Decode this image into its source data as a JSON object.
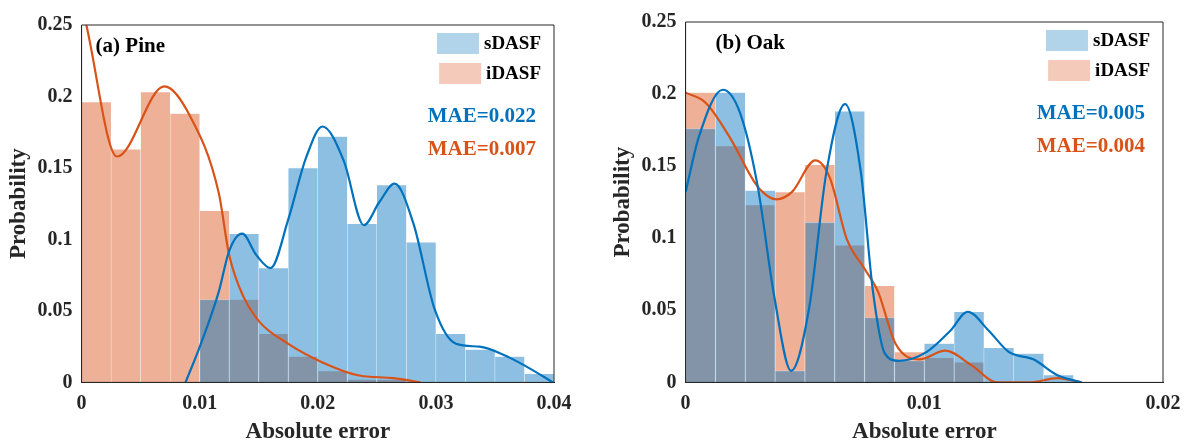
{
  "chart_data": [
    {
      "type": "histogram",
      "title": "(a) Pine",
      "xlabel": "Absolute error",
      "ylabel": "Probability",
      "bins": [
        0,
        0.0025,
        0.005,
        0.0075,
        0.01,
        0.0125,
        0.015,
        0.0175,
        0.02,
        0.0225,
        0.025,
        0.0275,
        0.03,
        0.0325,
        0.035,
        0.0375,
        0.04
      ],
      "series": [
        {
          "name": "sDASF",
          "color": "#0072bd",
          "values": [
            0,
            0,
            0,
            0,
            0.058,
            0.104,
            0.08,
            0.15,
            0.172,
            0.111,
            0.138,
            0.098,
            0.034,
            0.023,
            0.018,
            0.006
          ]
        },
        {
          "name": "iDASF",
          "color": "#d95319",
          "values": [
            0.196,
            0.163,
            0.203,
            0.188,
            0.12,
            0.058,
            0.034,
            0.018,
            0.008,
            0.002,
            0.002,
            0,
            0,
            0,
            0,
            0
          ]
        },
        {
          "type": "line",
          "color": "#0072bd",
          "x": [
            0.0088,
            0.0101,
            0.0116,
            0.0125,
            0.0136,
            0.0148,
            0.016,
            0.0175,
            0.019,
            0.0204,
            0.0222,
            0.0239,
            0.0252,
            0.0265,
            0.0281,
            0.0299,
            0.0317,
            0.0337,
            0.0358,
            0.0379,
            0.0399
          ],
          "values": [
            0,
            0.027,
            0.063,
            0.092,
            0.104,
            0.089,
            0.08,
            0.114,
            0.157,
            0.179,
            0.155,
            0.11,
            0.126,
            0.139,
            0.111,
            0.051,
            0.027,
            0.025,
            0.019,
            0.01,
            0
          ]
        },
        {
          "type": "line",
          "color": "#d95319",
          "x": [
            0.0004,
            0.003,
            0.007,
            0.0092,
            0.0116,
            0.0125,
            0.0137,
            0.0151,
            0.0175,
            0.0204,
            0.0234,
            0.0264,
            0.0287
          ],
          "values": [
            0.25,
            0.158,
            0.207,
            0.186,
            0.133,
            0.089,
            0.06,
            0.042,
            0.027,
            0.014,
            0.005,
            0.003,
            0
          ]
        }
      ],
      "annotations": [
        "MAE=0.022",
        "MAE=0.007"
      ],
      "xlim": [
        0,
        0.04
      ],
      "xticks": [
        0,
        0.01,
        0.02,
        0.03,
        0.04
      ],
      "ylim": [
        0,
        0.25
      ],
      "yticks": [
        0,
        0.05,
        0.1,
        0.15,
        0.2,
        0.25
      ],
      "legend": "top right",
      "grid": false
    },
    {
      "type": "histogram",
      "title": "(b) Oak",
      "xlabel": "Absolute error",
      "ylabel": "Probability",
      "bins": [
        0,
        0.00125,
        0.0025,
        0.00375,
        0.005,
        0.00625,
        0.0075,
        0.00875,
        0.01,
        0.01125,
        0.0125,
        0.01375,
        0.015,
        0.01625,
        0.0175,
        0.01875,
        0.02
      ],
      "series": [
        {
          "name": "sDASF",
          "color": "#0072bd",
          "values": [
            0.176,
            0.201,
            0.133,
            0.008,
            0.111,
            0.188,
            0.045,
            0.015,
            0.027,
            0.049,
            0.024,
            0.02,
            0.005,
            0,
            0,
            0
          ]
        },
        {
          "name": "iDASF",
          "color": "#d95319",
          "values": [
            0.201,
            0.164,
            0.123,
            0.132,
            0.151,
            0.095,
            0.067,
            0.021,
            0.017,
            0.014,
            0,
            0,
            0,
            0,
            0,
            0
          ]
        },
        {
          "type": "line",
          "color": "#0072bd",
          "x": [
            0,
            0.00055,
            0.00156,
            0.00228,
            0.00301,
            0.00373,
            0.00442,
            0.00517,
            0.0059,
            0.00668,
            0.00734,
            0.00785,
            0.00835,
            0.00893,
            0.01009,
            0.0111,
            0.01182,
            0.01269,
            0.01355,
            0.01457,
            0.01558,
            0.01659
          ],
          "values": [
            0.132,
            0.17,
            0.203,
            0.187,
            0.137,
            0.058,
            0.008,
            0.051,
            0.146,
            0.193,
            0.146,
            0.063,
            0.02,
            0.015,
            0.021,
            0.036,
            0.049,
            0.036,
            0.021,
            0.016,
            0.005,
            0
          ]
        },
        {
          "type": "line",
          "color": "#d95319",
          "x": [
            0,
            0.00084,
            0.00185,
            0.00301,
            0.0038,
            0.00445,
            0.00543,
            0.00604,
            0.00676,
            0.00749,
            0.00806,
            0.00879,
            0.0098,
            0.01088,
            0.01197,
            0.01305,
            0.01442,
            0.01558,
            0.01659
          ],
          "values": [
            0.201,
            0.194,
            0.17,
            0.136,
            0.127,
            0.132,
            0.154,
            0.142,
            0.099,
            0.079,
            0.063,
            0.027,
            0.016,
            0.022,
            0.012,
            0,
            0,
            0.003,
            0
          ]
        }
      ],
      "annotations": [
        "MAE=0.005",
        "MAE=0.004"
      ],
      "xlim": [
        0,
        0.02
      ],
      "xticks": [
        0,
        0.01,
        0.02
      ],
      "ylim": [
        0,
        0.25
      ],
      "yticks": [
        0,
        0.05,
        0.1,
        0.15,
        0.2,
        0.25
      ],
      "legend": "top right",
      "grid": false
    }
  ]
}
